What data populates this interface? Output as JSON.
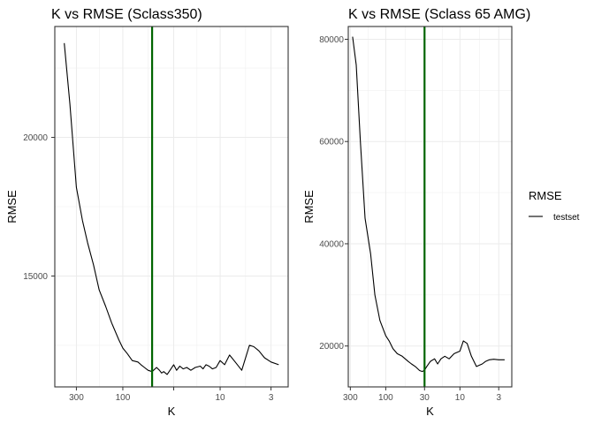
{
  "chart_data": [
    {
      "type": "line",
      "title": "K vs RMSE (Sclass350)",
      "xlabel": "K",
      "ylabel": "RMSE",
      "x_scale": "reverse-log10",
      "xlim": [
        500,
        2
      ],
      "ylim": [
        11000,
        24000
      ],
      "x_ticks": [
        300,
        100,
        30,
        10,
        3
      ],
      "x_tick_labels": [
        "300",
        "100",
        "",
        "10",
        "3"
      ],
      "y_ticks": [
        15000,
        20000
      ],
      "y_tick_labels": [
        "15000",
        "20000"
      ],
      "grid": true,
      "vline": {
        "x": 50,
        "color": "#006400"
      },
      "series": [
        {
          "name": "testset",
          "x": [
            400,
            350,
            300,
            260,
            230,
            200,
            175,
            150,
            130,
            110,
            100,
            90,
            80,
            70,
            65,
            60,
            55,
            50,
            45,
            42,
            40,
            38,
            35,
            32,
            30,
            28,
            26,
            24,
            22,
            20,
            18,
            16,
            15,
            14,
            13,
            12,
            11,
            10,
            9,
            8,
            7,
            6,
            5,
            4.5,
            4,
            3.5,
            3,
            2.5
          ],
          "values": [
            23400,
            21200,
            18200,
            17000,
            16200,
            15400,
            14500,
            13900,
            13300,
            12700,
            12400,
            12200,
            11950,
            11900,
            11800,
            11700,
            11600,
            11550,
            11700,
            11600,
            11500,
            11550,
            11450,
            11650,
            11800,
            11600,
            11750,
            11650,
            11700,
            11600,
            11700,
            11750,
            11650,
            11800,
            11750,
            11650,
            11700,
            11950,
            11800,
            12150,
            11900,
            11600,
            12500,
            12450,
            12300,
            12050,
            11900,
            11800
          ]
        }
      ]
    },
    {
      "type": "line",
      "title": "K vs RMSE (Sclass 65 AMG)",
      "xlabel": "K",
      "ylabel": "RMSE",
      "x_scale": "reverse-log10",
      "xlim": [
        320,
        2
      ],
      "ylim": [
        12000,
        82500
      ],
      "x_ticks": [
        300,
        100,
        30,
        10,
        3
      ],
      "x_tick_labels": [
        "300",
        "100",
        "30",
        "10",
        "3"
      ],
      "y_ticks": [
        20000,
        40000,
        60000,
        80000
      ],
      "y_tick_labels": [
        "20000",
        "40000",
        "60000",
        "80000"
      ],
      "grid": true,
      "vline": {
        "x": 30,
        "color": "#006400"
      },
      "series": [
        {
          "name": "testset",
          "x": [
            280,
            250,
            220,
            190,
            160,
            140,
            120,
            100,
            90,
            80,
            70,
            60,
            50,
            45,
            40,
            35,
            32,
            30,
            28,
            25,
            22,
            20,
            18,
            16,
            14,
            12,
            10,
            9,
            8,
            7,
            6,
            5,
            4.5,
            4,
            3.5,
            3,
            2.5
          ],
          "values": [
            80500,
            75000,
            60000,
            45000,
            38000,
            30000,
            25000,
            22000,
            21000,
            19500,
            18500,
            18000,
            17000,
            16500,
            16000,
            15200,
            15000,
            15300,
            16000,
            17000,
            17500,
            16500,
            17500,
            18000,
            17500,
            18500,
            19000,
            21000,
            20500,
            18000,
            16000,
            16500,
            17000,
            17300,
            17400,
            17300,
            17300
          ]
        }
      ]
    }
  ],
  "legend": {
    "title": "RMSE",
    "items": [
      {
        "label": "testset",
        "color": "#000000"
      }
    ],
    "placement": "right"
  }
}
